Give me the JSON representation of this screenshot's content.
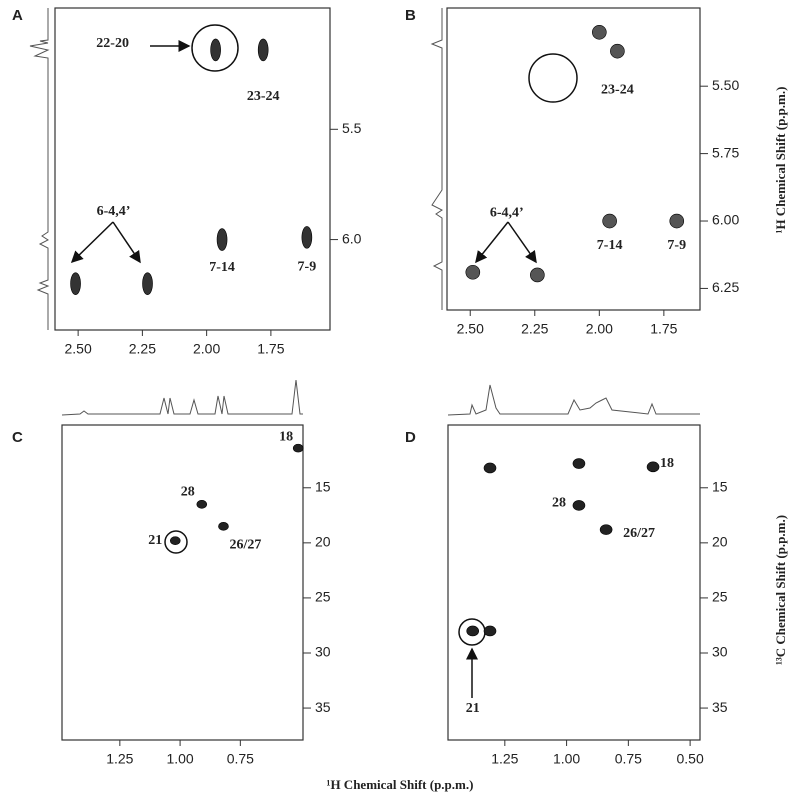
{
  "chart_data": [
    {
      "type": "scatter",
      "label": "A",
      "color": "#333333",
      "x": [
        1.965,
        1.78,
        2.51,
        2.23,
        1.94,
        1.61
      ],
      "values": [
        5.14,
        5.14,
        6.2,
        6.2,
        6.0,
        5.99
      ],
      "labels": [
        "22-20",
        "23-24",
        "6-4,4’",
        null,
        "7-14",
        "7-9"
      ],
      "xlim": [
        2.59,
        1.52
      ],
      "ylim": [
        4.95,
        6.41
      ],
      "xticks": [
        {
          "value": 2.5,
          "label": "2.50"
        },
        2.25,
        {
          "value": 2,
          "label": "2.00"
        },
        1.75
      ],
      "yticks": [
        5.5,
        {
          "value": 6,
          "label": "6.0"
        }
      ]
    },
    {
      "type": "scatter",
      "label": "B",
      "color": "#555555",
      "x": [
        1.93,
        2.0,
        1.96,
        1.7,
        2.49,
        2.24
      ],
      "values": [
        5.37,
        5.3,
        6.0,
        6.0,
        6.19,
        6.2
      ],
      "labels": [
        "23-24",
        null,
        "7-14",
        "7-9",
        "6-4,4’",
        null
      ],
      "xlim": [
        2.59,
        1.61
      ],
      "ylim": [
        5.21,
        6.33
      ],
      "xticks": [
        {
          "value": 2.5,
          "label": "2.50"
        },
        2.25,
        {
          "value": 2,
          "label": "2.00"
        },
        1.75
      ],
      "yticks": [
        {
          "value": 5.5,
          "label": "5.50"
        },
        5.75,
        {
          "value": 6,
          "label": "6.00"
        },
        6.25
      ],
      "ylabel": "¹H Chemical Shift (p.p.m.)"
    },
    {
      "type": "scatter",
      "label": "C",
      "color": "#222222",
      "x": [
        0.51,
        0.91,
        0.82,
        1.02
      ],
      "values": [
        11.4,
        16.5,
        18.5,
        19.8
      ],
      "labels": [
        "18",
        "28",
        "26/27",
        "21"
      ],
      "xlim": [
        1.49,
        0.49
      ],
      "ylim": [
        9.3,
        37.9
      ],
      "xticks": [
        1.25,
        {
          "value": 1,
          "label": "1.00"
        },
        0.75
      ],
      "yticks": [
        15,
        20,
        25,
        30,
        35
      ]
    },
    {
      "type": "scatter",
      "label": "D",
      "color": "#222222",
      "x": [
        1.31,
        0.95,
        0.65,
        0.95,
        0.84,
        1.38,
        1.31
      ],
      "values": [
        13.2,
        12.8,
        13.1,
        16.6,
        18.8,
        28.0,
        28.0
      ],
      "labels": [
        null,
        null,
        "18",
        "28",
        "26/27",
        "21",
        null
      ],
      "xlim": [
        1.48,
        0.46
      ],
      "ylim": [
        9.3,
        37.9
      ],
      "xticks": [
        1.25,
        {
          "value": 1,
          "label": "1.00"
        },
        0.75,
        {
          "value": 0.5,
          "label": "0.50"
        }
      ],
      "yticks": [
        15,
        20,
        25,
        30,
        35
      ],
      "ylabel": "¹³C Chemical Shift (p.p.m.)"
    }
  ],
  "x_label": "¹H Chemical Shift (p.p.m.)"
}
